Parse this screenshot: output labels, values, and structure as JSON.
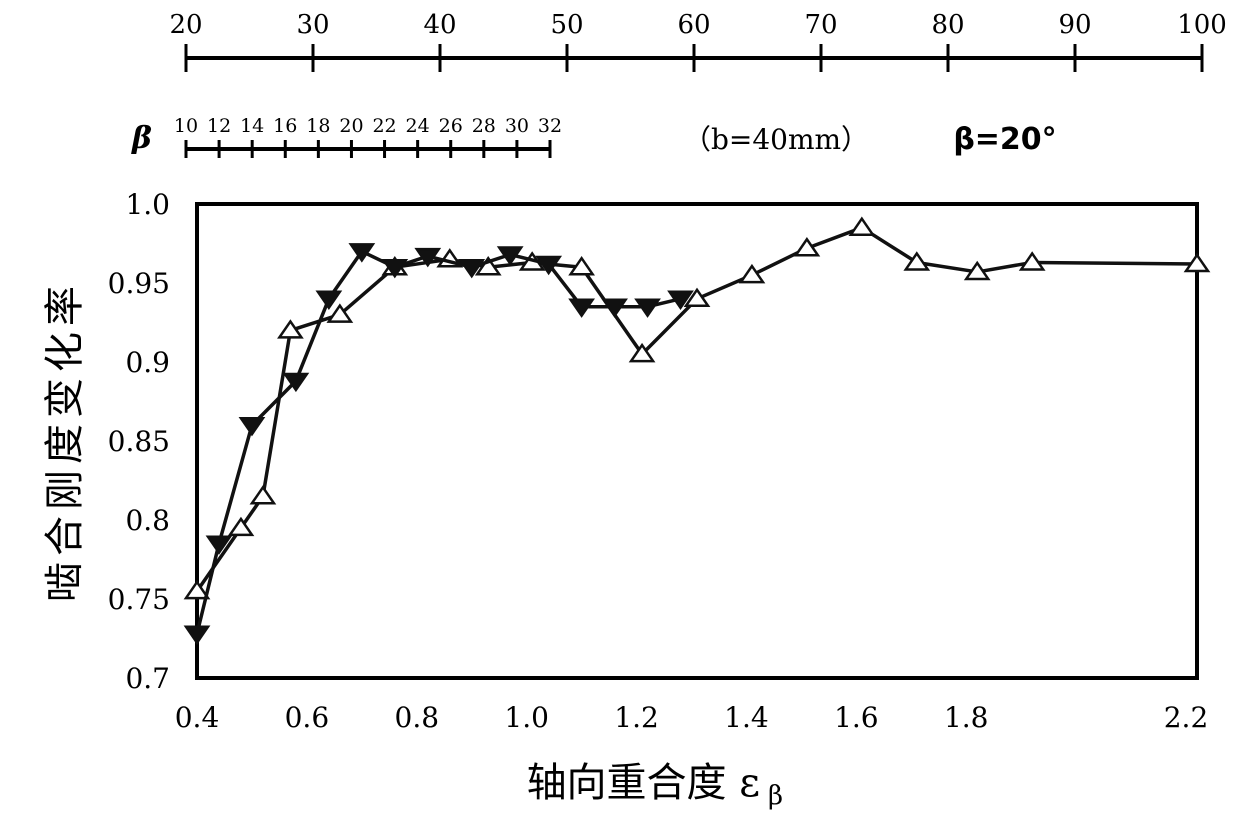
{
  "chart_data": {
    "type": "line",
    "xlabel": "轴向重合度 ε",
    "xlabel_sub": "β",
    "ylabel": "啮合刚度变化率",
    "xlim": [
      0.4,
      2.22
    ],
    "ylim": [
      0.7,
      1.0
    ],
    "x_ticks": [
      0.4,
      0.6,
      0.8,
      1.0,
      1.2,
      1.4,
      1.6,
      1.8,
      2.0,
      2.2
    ],
    "x_tick_labels": [
      "0.4",
      "0.6",
      "0.8",
      "1.0",
      "1.2",
      "1.4",
      "1.6",
      "1.8",
      "",
      "2.2"
    ],
    "y_ticks": [
      0.7,
      0.75,
      0.8,
      0.85,
      0.9,
      0.95,
      1.0
    ],
    "y_tick_labels": [
      "0.7",
      "0.75",
      "0.8",
      "0.85",
      "0.9",
      "0.95",
      "1.0"
    ],
    "grid": false,
    "series": [
      {
        "marker": "triangle-up",
        "x": [
          0.4,
          0.48,
          0.52,
          0.57,
          0.66,
          0.76,
          0.86,
          0.93,
          1.01,
          1.1,
          1.21,
          1.31,
          1.41,
          1.51,
          1.61,
          1.71,
          1.82,
          1.92,
          2.22
        ],
        "y": [
          0.755,
          0.795,
          0.815,
          0.92,
          0.93,
          0.96,
          0.965,
          0.96,
          0.963,
          0.96,
          0.905,
          0.94,
          0.955,
          0.972,
          0.985,
          0.963,
          0.957,
          0.963,
          0.962
        ]
      },
      {
        "marker": "triangle-down",
        "x": [
          0.4,
          0.44,
          0.5,
          0.58,
          0.64,
          0.7,
          0.76,
          0.82,
          0.9,
          0.97,
          1.04,
          1.1,
          1.16,
          1.22,
          1.28
        ],
        "y": [
          0.728,
          0.785,
          0.86,
          0.888,
          0.94,
          0.97,
          0.96,
          0.967,
          0.96,
          0.968,
          0.962,
          0.935,
          0.935,
          0.935,
          0.94
        ]
      }
    ],
    "top_scale_labels": [
      "20",
      "30",
      "40",
      "50",
      "60",
      "70",
      "80",
      "90",
      "100"
    ],
    "beta_symbol": "β",
    "beta_scale_labels": [
      "10",
      "12",
      "14",
      "16",
      "18",
      "20",
      "22",
      "24",
      "26",
      "28",
      "30",
      "32"
    ],
    "annotation_b": "（b=40mm）",
    "annotation_beta": "β=20°"
  }
}
